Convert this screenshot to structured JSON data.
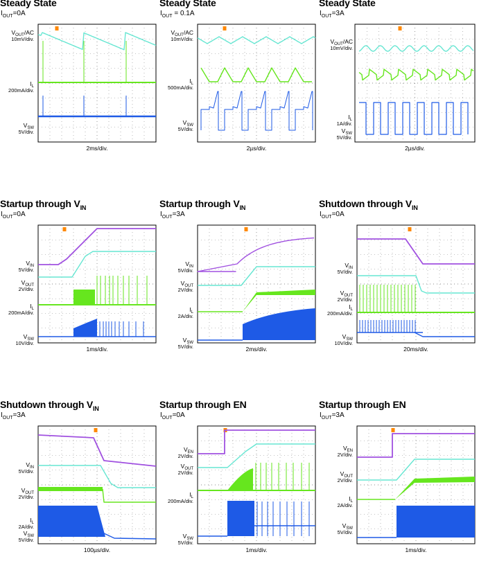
{
  "colors": {
    "cyan": "#66e6d2",
    "green": "#66e61e",
    "blue": "#1e5ae6",
    "purple": "#a050e0",
    "marker": "#ff8800",
    "frame": "#000000",
    "grid": "#888888"
  },
  "chart_data": [
    {
      "type": "line",
      "title_main": "Steady State",
      "subtitle": {
        "name": "I",
        "sub": "OUT",
        "text": "=0A"
      },
      "xlabel": "2ms/div.",
      "channels": [
        {
          "id": "vout",
          "label": "V",
          "label_sub": "OUT",
          "label_suffix": "/AC",
          "scale": "10mV/div.",
          "color": "cyan"
        },
        {
          "id": "il",
          "label": "I",
          "label_sub": "L",
          "label_suffix": "",
          "scale": "200mA/div.",
          "color": "green"
        },
        {
          "id": "vsw",
          "label": "V",
          "label_sub": "SW",
          "label_suffix": "",
          "scale": "5V/div.",
          "color": "blue"
        }
      ]
    },
    {
      "type": "line",
      "title_main": "Steady State",
      "subtitle": {
        "name": "I",
        "sub": "OUT",
        "text": " = 0.1A"
      },
      "xlabel": "2µs/div.",
      "channels": [
        {
          "id": "vout",
          "label": "V",
          "label_sub": "OUT",
          "label_suffix": "/AC",
          "scale": "10mV/div.",
          "color": "cyan"
        },
        {
          "id": "il",
          "label": "I",
          "label_sub": "L",
          "label_suffix": "",
          "scale": "500mA/div.",
          "color": "green"
        },
        {
          "id": "vsw",
          "label": "V",
          "label_sub": "SW",
          "label_suffix": "",
          "scale": "5V/div.",
          "color": "blue"
        }
      ]
    },
    {
      "type": "line",
      "title_main": "Steady State",
      "subtitle": {
        "name": "I",
        "sub": "OUT",
        "text": "=3A"
      },
      "xlabel": "2µs/div.",
      "channels": [
        {
          "id": "vout",
          "label": "V",
          "label_sub": "OUT",
          "label_suffix": "/AC",
          "scale": "10mV/div.",
          "color": "cyan"
        },
        {
          "id": "il",
          "label": "I",
          "label_sub": "L",
          "label_suffix": "",
          "scale": "1A/div.",
          "color": "green"
        },
        {
          "id": "vsw",
          "label": "V",
          "label_sub": "SW",
          "label_suffix": "",
          "scale": "5V/div.",
          "color": "blue"
        }
      ]
    },
    {
      "type": "line",
      "title_main": "Startup through V",
      "title_sub": "IN",
      "subtitle": {
        "name": "I",
        "sub": "OUT",
        "text": "=0A"
      },
      "xlabel": "1ms/div.",
      "channels": [
        {
          "id": "vin",
          "label": "V",
          "label_sub": "IN",
          "label_suffix": "",
          "scale": "5V/div.",
          "color": "purple"
        },
        {
          "id": "vout",
          "label": "V",
          "label_sub": "OUT",
          "label_suffix": "",
          "scale": "2V/div.",
          "color": "cyan"
        },
        {
          "id": "il",
          "label": "I",
          "label_sub": "L",
          "label_suffix": "",
          "scale": "200mA/div.",
          "color": "green"
        },
        {
          "id": "vsw",
          "label": "V",
          "label_sub": "SW",
          "label_suffix": "",
          "scale": "10V/div.",
          "color": "blue"
        }
      ]
    },
    {
      "type": "line",
      "title_main": "Startup through V",
      "title_sub": "IN",
      "subtitle": {
        "name": "I",
        "sub": "OUT",
        "text": "=3A"
      },
      "xlabel": "2ms/div.",
      "channels": [
        {
          "id": "vin",
          "label": "V",
          "label_sub": "IN",
          "label_suffix": "",
          "scale": "5V/div.",
          "color": "purple"
        },
        {
          "id": "vout",
          "label": "V",
          "label_sub": "OUT",
          "label_suffix": "",
          "scale": "2V/div.",
          "color": "cyan"
        },
        {
          "id": "il",
          "label": "I",
          "label_sub": "L",
          "label_suffix": "",
          "scale": "2A/div.",
          "color": "green"
        },
        {
          "id": "vsw",
          "label": "V",
          "label_sub": "SW",
          "label_suffix": "",
          "scale": "5V/div.",
          "color": "blue"
        }
      ]
    },
    {
      "type": "line",
      "title_main": "Shutdown through V",
      "title_sub": "IN",
      "subtitle": {
        "name": "I",
        "sub": "OUT",
        "text": "=0A"
      },
      "xlabel": "20ms/div.",
      "channels": [
        {
          "id": "vin",
          "label": "V",
          "label_sub": "IN",
          "label_suffix": "",
          "scale": "5V/div.",
          "color": "purple"
        },
        {
          "id": "vout",
          "label": "V",
          "label_sub": "OUT",
          "label_suffix": "",
          "scale": "2V/div.",
          "color": "cyan"
        },
        {
          "id": "il",
          "label": "I",
          "label_sub": "L",
          "label_suffix": "",
          "scale": "200mA/div.",
          "color": "green"
        },
        {
          "id": "vsw",
          "label": "V",
          "label_sub": "SW",
          "label_suffix": "",
          "scale": "10V/div.",
          "color": "blue"
        }
      ]
    },
    {
      "type": "line",
      "title_main": "Shutdown through V",
      "title_sub": "IN",
      "subtitle": {
        "name": "I",
        "sub": "OUT",
        "text": "=3A"
      },
      "xlabel": "100µs/div.",
      "channels": [
        {
          "id": "vin",
          "label": "V",
          "label_sub": "IN",
          "label_suffix": "",
          "scale": "5V/div.",
          "color": "purple"
        },
        {
          "id": "vout",
          "label": "V",
          "label_sub": "OUT",
          "label_suffix": "",
          "scale": "2V/div.",
          "color": "cyan"
        },
        {
          "id": "il",
          "label": "I",
          "label_sub": "L",
          "label_suffix": "",
          "scale": "2A/div.",
          "color": "green"
        },
        {
          "id": "vsw",
          "label": "V",
          "label_sub": "SW",
          "label_suffix": "",
          "scale": "5V/div.",
          "color": "blue"
        }
      ]
    },
    {
      "type": "line",
      "title_main": "Startup through EN",
      "subtitle": {
        "name": "I",
        "sub": "OUT",
        "text": "=0A"
      },
      "xlabel": "1ms/div.",
      "channels": [
        {
          "id": "ven",
          "label": "V",
          "label_sub": "EN",
          "label_suffix": "",
          "scale": "2V/div.",
          "color": "purple"
        },
        {
          "id": "vout",
          "label": "V",
          "label_sub": "OUT",
          "label_suffix": "",
          "scale": "2V/div.",
          "color": "cyan"
        },
        {
          "id": "il",
          "label": "I",
          "label_sub": "L",
          "label_suffix": "",
          "scale": "200mA/div.",
          "color": "green"
        },
        {
          "id": "vsw",
          "label": "V",
          "label_sub": "SW",
          "label_suffix": "",
          "scale": "5V/div.",
          "color": "blue"
        }
      ]
    },
    {
      "type": "line",
      "title_main": "Startup through EN",
      "subtitle": {
        "name": "I",
        "sub": "OUT",
        "text": "=3A"
      },
      "xlabel": "1ms/div.",
      "channels": [
        {
          "id": "ven",
          "label": "V",
          "label_sub": "EN",
          "label_suffix": "",
          "scale": "2V/div.",
          "color": "purple"
        },
        {
          "id": "vout",
          "label": "V",
          "label_sub": "OUT",
          "label_suffix": "",
          "scale": "2V/div.",
          "color": "cyan"
        },
        {
          "id": "il",
          "label": "I",
          "label_sub": "L",
          "label_suffix": "",
          "scale": "2A/div.",
          "color": "green"
        },
        {
          "id": "vsw",
          "label": "V",
          "label_sub": "SW",
          "label_suffix": "",
          "scale": "5V/div.",
          "color": "blue"
        }
      ]
    }
  ]
}
